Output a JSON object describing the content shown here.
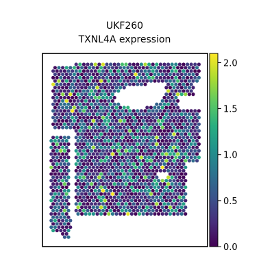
{
  "chart_data": {
    "type": "scatter",
    "subtype": "spatial-spot-map",
    "title_lines": [
      "UKF260",
      "TXNL4A expression"
    ],
    "xlabel": "",
    "ylabel": "",
    "colorbar": {
      "colormap": "viridis",
      "range": [
        0.0,
        2.1
      ],
      "ticks": [
        0.0,
        0.5,
        1.0,
        1.5,
        2.0
      ],
      "tick_labels": [
        "0.0",
        "0.5",
        "1.0",
        "1.5",
        "2.0"
      ]
    },
    "frame": true,
    "axis_ticks_visible": false,
    "grid": false,
    "legend": "colorbar-right",
    "spot_values": {
      "distribution": "right-skewed",
      "typical_range": [
        0.0,
        1.0
      ],
      "max_observed": 2.1
    }
  }
}
